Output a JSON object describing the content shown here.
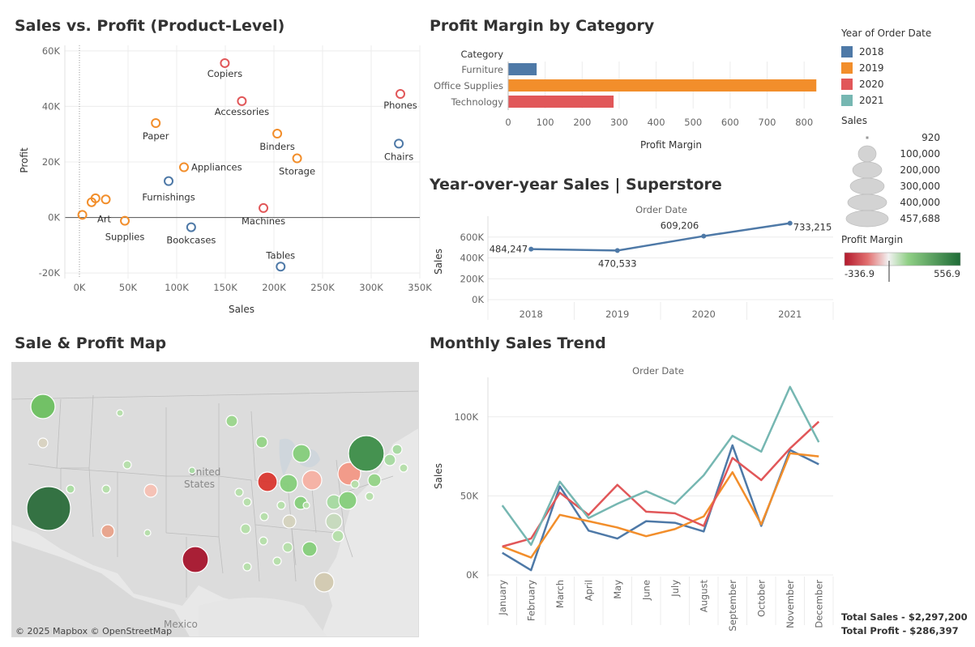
{
  "scatter": {
    "title": "Sales vs. Profit (Product-Level)",
    "chart_data": {
      "type": "scatter",
      "xlabel": "Sales",
      "ylabel": "Profit",
      "xlim": [
        -15000,
        350000
      ],
      "ylim": [
        -22000,
        62000
      ],
      "x_ticks": [
        "0K",
        "50K",
        "100K",
        "150K",
        "200K",
        "250K",
        "300K",
        "350K"
      ],
      "x_tick_values": [
        0,
        50000,
        100000,
        150000,
        200000,
        250000,
        300000,
        350000
      ],
      "y_ticks": [
        "60K",
        "40K",
        "20K",
        "0K",
        "-20K"
      ],
      "y_tick_values": [
        60000,
        40000,
        20000,
        0,
        -20000
      ],
      "points": [
        {
          "label": "Copiers",
          "x": 149500,
          "y": 55600,
          "year": "2020"
        },
        {
          "label": "Accessories",
          "x": 167000,
          "y": 41900,
          "year": "2020"
        },
        {
          "label": "Phones",
          "x": 330000,
          "y": 44500,
          "year": "2020"
        },
        {
          "label": "Paper",
          "x": 78500,
          "y": 34000,
          "year": "2019"
        },
        {
          "label": "Binders",
          "x": 203400,
          "y": 30200,
          "year": "2019"
        },
        {
          "label": "Storage",
          "x": 223800,
          "y": 21300,
          "year": "2019"
        },
        {
          "label": "Chairs",
          "x": 328400,
          "y": 26600,
          "year": "2018"
        },
        {
          "label": "Appliances",
          "x": 107500,
          "y": 18100,
          "year": "2019"
        },
        {
          "label": "Furnishings",
          "x": 91700,
          "y": 13100,
          "year": "2018"
        },
        {
          "label": "Art",
          "x": 27100,
          "y": 6500,
          "year": "2019"
        },
        {
          "label": "",
          "x": 16500,
          "y": 6900,
          "year": "2019"
        },
        {
          "label": "",
          "x": 12500,
          "y": 5500,
          "year": "2019"
        },
        {
          "label": "",
          "x": 3000,
          "y": 950,
          "year": "2019"
        },
        {
          "label": "Machines",
          "x": 189200,
          "y": 3400,
          "year": "2020"
        },
        {
          "label": "Supplies",
          "x": 46700,
          "y": -1200,
          "year": "2019"
        },
        {
          "label": "Bookcases",
          "x": 114900,
          "y": -3500,
          "year": "2018"
        },
        {
          "label": "Tables",
          "x": 206900,
          "y": -17700,
          "year": "2018"
        }
      ]
    }
  },
  "margin": {
    "title": "Profit Margin by Category",
    "chart_data": {
      "type": "bar",
      "orientation": "horizontal",
      "header": "Category",
      "categories": [
        "Furniture",
        "Office Supplies",
        "Technology"
      ],
      "values": [
        77,
        833,
        285
      ],
      "colors": [
        "#4e79a7",
        "#f28e2b",
        "#e15759"
      ],
      "xlabel": "Profit Margin",
      "xlim": [
        0,
        850
      ],
      "x_ticks": [
        0,
        100,
        200,
        300,
        400,
        500,
        600,
        700,
        800
      ]
    }
  },
  "yoy": {
    "title": "Year-over-year Sales | Superstore",
    "chart_data": {
      "type": "line",
      "header": "Order Date",
      "ylabel": "Sales",
      "categories": [
        "2018",
        "2019",
        "2020",
        "2021"
      ],
      "values": [
        484247,
        470533,
        609206,
        733215
      ],
      "value_labels": [
        "484,247",
        "470,533",
        "609,206",
        "733,215"
      ],
      "ylim": [
        0,
        800000
      ],
      "y_ticks": [
        "600K",
        "400K",
        "200K",
        "0K"
      ],
      "y_tick_values": [
        600000,
        400000,
        200000,
        0
      ],
      "color": "#4e79a7"
    }
  },
  "map": {
    "title": "Sale & Profit Map",
    "place_labels": [
      "United",
      "States",
      "Mexico"
    ],
    "attribution": "© 2025 Mapbox  © OpenStreetMap"
  },
  "monthly": {
    "title": "Monthly Sales Trend",
    "chart_data": {
      "type": "line",
      "header": "Order Date",
      "ylabel": "Sales",
      "categories": [
        "January",
        "February",
        "March",
        "April",
        "May",
        "June",
        "July",
        "August",
        "September",
        "October",
        "November",
        "December"
      ],
      "ylim": [
        0,
        125000
      ],
      "y_ticks": [
        "100K",
        "50K",
        "0K"
      ],
      "y_tick_values": [
        100000,
        50000,
        0
      ],
      "series": [
        {
          "name": "2018",
          "color": "#4e79a7",
          "values": [
            14000,
            3000,
            56000,
            28000,
            23000,
            34000,
            33000,
            27500,
            82000,
            31000,
            79000,
            70000
          ]
        },
        {
          "name": "2019",
          "color": "#f28e2b",
          "values": [
            18000,
            11000,
            38000,
            34000,
            30000,
            24500,
            29000,
            37000,
            65000,
            32000,
            77000,
            75000
          ]
        },
        {
          "name": "2020",
          "color": "#e15759",
          "values": [
            18000,
            23000,
            52000,
            38000,
            57000,
            40000,
            39000,
            31000,
            74000,
            60000,
            80000,
            97000
          ]
        },
        {
          "name": "2021",
          "color": "#76b7b2",
          "values": [
            44000,
            19000,
            59000,
            36000,
            45000,
            53000,
            45000,
            63000,
            88000,
            78000,
            119000,
            84000
          ]
        }
      ]
    }
  },
  "legend": {
    "year_title": "Year of Order Date",
    "years": [
      {
        "label": "2018",
        "color": "#4e79a7"
      },
      {
        "label": "2019",
        "color": "#f28e2b"
      },
      {
        "label": "2020",
        "color": "#e15759"
      },
      {
        "label": "2021",
        "color": "#76b7b2"
      }
    ],
    "sales_title": "Sales",
    "sales_sizes": [
      "920",
      "100,000",
      "200,000",
      "300,000",
      "400,000",
      "457,688"
    ],
    "margin_title": "Profit Margin",
    "margin_min": "-336.9",
    "margin_max": "556.9",
    "colors": {
      "neg": "#b2182b",
      "mid": "#f2f2f2",
      "pos": "#1e6b36"
    }
  },
  "totals": {
    "sales": "Total Sales - $2,297,200",
    "profit": "Total Profit - $286,397"
  }
}
